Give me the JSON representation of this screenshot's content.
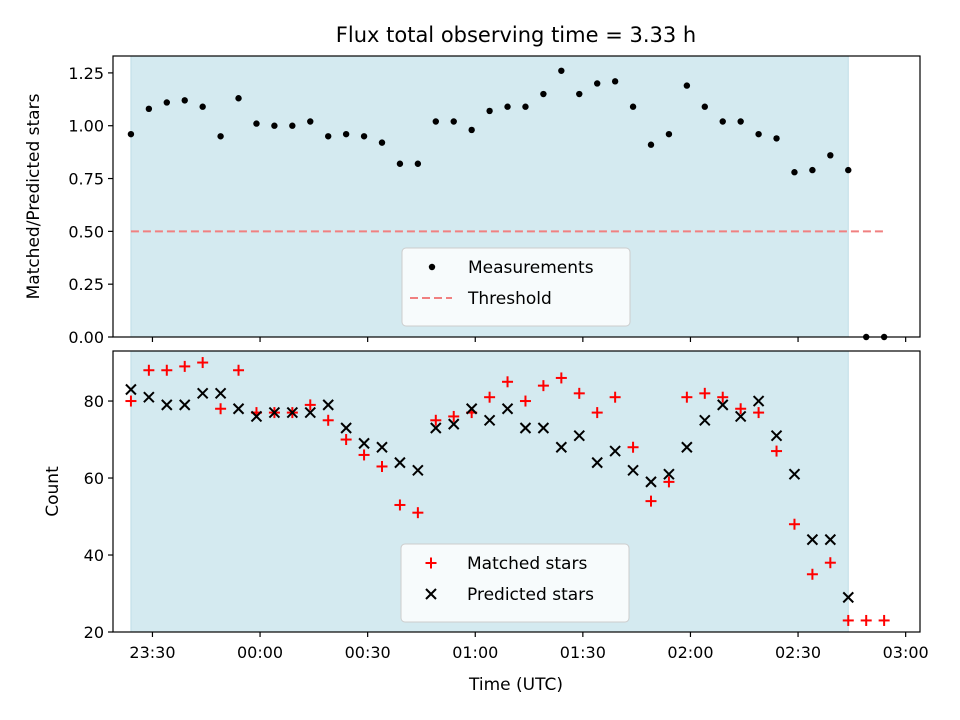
{
  "figure_title": "Flux total observing time = 3.33 h",
  "xlabel": "Time (UTC)",
  "x_ticks": [
    "23:30",
    "00:00",
    "00:30",
    "01:00",
    "01:30",
    "02:00",
    "02:30",
    "03:00"
  ],
  "colors": {
    "observing_span": "#d4eaf0",
    "measurements": "#000000",
    "threshold": "#f08080",
    "matched": "#ff0000",
    "predicted": "#000000"
  },
  "chart_data": [
    {
      "type": "scatter",
      "title": "Flux total observing time = 3.33 h",
      "ylabel": "Matched/Predicted stars",
      "xlabel": "",
      "xlim": [
        "23:19",
        "03:04"
      ],
      "ylim": [
        0,
        1.33
      ],
      "y_ticks": [
        "0.00",
        "0.25",
        "0.50",
        "0.75",
        "1.00",
        "1.25"
      ],
      "legend_position": "lower-center",
      "observing_span": [
        "23:24",
        "02:44"
      ],
      "threshold": {
        "name": "Threshold",
        "y": 0.5,
        "x_range": [
          "23:24",
          "02:54"
        ]
      },
      "series": [
        {
          "name": "Measurements",
          "marker": "dot",
          "x": [
            "23:24",
            "23:29",
            "23:34",
            "23:39",
            "23:44",
            "23:49",
            "23:54",
            "23:59",
            "00:04",
            "00:09",
            "00:14",
            "00:19",
            "00:24",
            "00:29",
            "00:34",
            "00:39",
            "00:44",
            "00:49",
            "00:54",
            "00:59",
            "01:04",
            "01:09",
            "01:14",
            "01:19",
            "01:24",
            "01:29",
            "01:34",
            "01:39",
            "01:44",
            "01:49",
            "01:54",
            "01:59",
            "02:04",
            "02:09",
            "02:14",
            "02:19",
            "02:24",
            "02:29",
            "02:34",
            "02:39",
            "02:44",
            "02:49",
            "02:54"
          ],
          "y": [
            0.96,
            1.08,
            1.11,
            1.12,
            1.09,
            0.95,
            1.13,
            1.01,
            1.0,
            1.0,
            1.02,
            0.95,
            0.96,
            0.95,
            0.92,
            0.82,
            0.82,
            1.02,
            1.02,
            0.98,
            1.07,
            1.09,
            1.09,
            1.15,
            1.26,
            1.15,
            1.2,
            1.21,
            1.09,
            0.91,
            0.96,
            1.19,
            1.09,
            1.02,
            1.02,
            0.96,
            0.94,
            0.78,
            0.79,
            0.86,
            0.79,
            0.0,
            0.0
          ]
        }
      ]
    },
    {
      "type": "scatter",
      "title": "",
      "ylabel": "Count",
      "xlabel": "Time (UTC)",
      "xlim": [
        "23:19",
        "03:04"
      ],
      "ylim": [
        20,
        93
      ],
      "y_ticks": [
        "20",
        "40",
        "60",
        "80"
      ],
      "legend_position": "lower-center",
      "observing_span": [
        "23:24",
        "02:44"
      ],
      "series": [
        {
          "name": "Matched stars",
          "marker": "plus",
          "x": [
            "23:24",
            "23:29",
            "23:34",
            "23:39",
            "23:44",
            "23:49",
            "23:54",
            "23:59",
            "00:04",
            "00:09",
            "00:14",
            "00:19",
            "00:24",
            "00:29",
            "00:34",
            "00:39",
            "00:44",
            "00:49",
            "00:54",
            "00:59",
            "01:04",
            "01:09",
            "01:14",
            "01:19",
            "01:24",
            "01:29",
            "01:34",
            "01:39",
            "01:44",
            "01:49",
            "01:54",
            "01:59",
            "02:04",
            "02:09",
            "02:14",
            "02:19",
            "02:24",
            "02:29",
            "02:34",
            "02:39",
            "02:44",
            "02:49",
            "02:54"
          ],
          "y": [
            80,
            88,
            88,
            89,
            90,
            78,
            88,
            77,
            77,
            77,
            79,
            75,
            70,
            66,
            63,
            53,
            51,
            75,
            76,
            77,
            81,
            85,
            80,
            84,
            86,
            82,
            77,
            81,
            68,
            54,
            59,
            81,
            82,
            81,
            78,
            77,
            67,
            48,
            35,
            38,
            23,
            23,
            23
          ]
        },
        {
          "name": "Predicted stars",
          "marker": "cross",
          "x": [
            "23:24",
            "23:29",
            "23:34",
            "23:39",
            "23:44",
            "23:49",
            "23:54",
            "23:59",
            "00:04",
            "00:09",
            "00:14",
            "00:19",
            "00:24",
            "00:29",
            "00:34",
            "00:39",
            "00:44",
            "00:49",
            "00:54",
            "00:59",
            "01:04",
            "01:09",
            "01:14",
            "01:19",
            "01:24",
            "01:29",
            "01:34",
            "01:39",
            "01:44",
            "01:49",
            "01:54",
            "01:59",
            "02:04",
            "02:09",
            "02:14",
            "02:19",
            "02:24",
            "02:29",
            "02:34",
            "02:39",
            "02:44"
          ],
          "y": [
            83,
            81,
            79,
            79,
            82,
            82,
            78,
            76,
            77,
            77,
            77,
            79,
            73,
            69,
            68,
            64,
            62,
            73,
            74,
            78,
            75,
            78,
            73,
            73,
            68,
            71,
            64,
            67,
            62,
            59,
            61,
            68,
            75,
            79,
            76,
            80,
            71,
            61,
            44,
            44,
            29
          ]
        }
      ]
    }
  ]
}
